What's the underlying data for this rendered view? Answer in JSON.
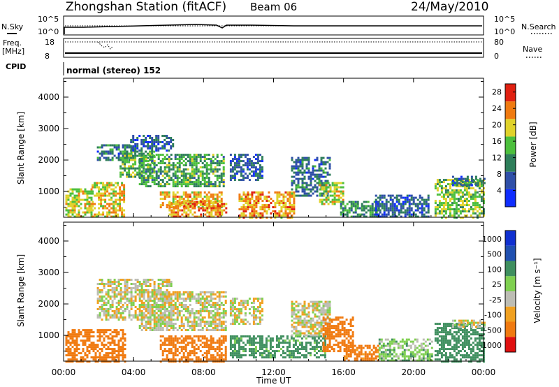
{
  "header": {
    "station_title": "Zhongshan Station (fitACF)",
    "beam": "Beam 06",
    "date": "24/May/2010"
  },
  "strip_panels": {
    "nsky_label": "N.Sky",
    "nsearch_label": "N.Search",
    "noise_ticks_left": [
      "10^5",
      "10^0"
    ],
    "noise_ticks_right": [
      "10^5",
      "10^0"
    ],
    "freq_label": "Freq.",
    "freq_unit": "[MHz]",
    "freq_ticks": [
      "18",
      "8"
    ],
    "nave_label": "Nave",
    "nave_ticks": [
      "80",
      "0"
    ],
    "cpid_label": "CPID",
    "cpid_text": "normal (stereo) 152"
  },
  "colors": {
    "power_scale": [
      "#0f2dff",
      "#2f4fa8",
      "#2e7e5a",
      "#4cbf3c",
      "#e0d22a",
      "#f07a10",
      "#e02010"
    ],
    "velocity_scale": [
      "#e01010",
      "#f07a10",
      "#f0a020",
      "#bdbdb4",
      "#7fd050",
      "#3f8f5f",
      "#2050b0",
      "#1030d0"
    ]
  },
  "chart_data": [
    {
      "type": "heatmap",
      "name": "power",
      "ylabel": "Slant Range [km]",
      "xlabel": "",
      "x_ticks": [
        "00:00",
        "04:00",
        "08:00",
        "12:00",
        "16:00",
        "20:00",
        "00:00"
      ],
      "y_ticks": [
        "1000",
        "2000",
        "3000",
        "4000"
      ],
      "xlim_hours": [
        0,
        24
      ],
      "ylim_km": [
        180,
        4600
      ],
      "colorbar_label": "Power [dB]",
      "colorbar_ticks": [
        "4",
        "8",
        "12",
        "16",
        "20",
        "24",
        "28"
      ],
      "clim": [
        0,
        30
      ],
      "regions": [
        {
          "t0": 0.1,
          "t1": 1.6,
          "r0": 200,
          "r1": 1100,
          "level": 18
        },
        {
          "t0": 1.6,
          "t1": 3.5,
          "r0": 200,
          "r1": 1300,
          "level": 20
        },
        {
          "t0": 1.9,
          "t1": 4.0,
          "r0": 2000,
          "r1": 2500,
          "level": 9
        },
        {
          "t0": 3.2,
          "t1": 5.2,
          "r0": 1500,
          "r1": 2300,
          "level": 14
        },
        {
          "t0": 3.8,
          "t1": 6.2,
          "r0": 2300,
          "r1": 2800,
          "level": 8
        },
        {
          "t0": 4.3,
          "t1": 9.2,
          "r0": 1200,
          "r1": 2200,
          "level": 13
        },
        {
          "t0": 5.5,
          "t1": 9.0,
          "r0": 500,
          "r1": 1000,
          "level": 21
        },
        {
          "t0": 6.0,
          "t1": 9.3,
          "r0": 200,
          "r1": 700,
          "level": 23
        },
        {
          "t0": 9.5,
          "t1": 11.3,
          "r0": 1400,
          "r1": 2200,
          "level": 8
        },
        {
          "t0": 10.0,
          "t1": 13.2,
          "r0": 200,
          "r1": 1000,
          "level": 22
        },
        {
          "t0": 13.0,
          "t1": 15.2,
          "r0": 900,
          "r1": 2100,
          "level": 9
        },
        {
          "t0": 14.6,
          "t1": 16.0,
          "r0": 600,
          "r1": 1300,
          "level": 18
        },
        {
          "t0": 15.8,
          "t1": 18.0,
          "r0": 200,
          "r1": 700,
          "level": 12
        },
        {
          "t0": 17.8,
          "t1": 20.8,
          "r0": 200,
          "r1": 900,
          "level": 7
        },
        {
          "t0": 21.2,
          "t1": 24.0,
          "r0": 200,
          "r1": 1400,
          "level": 16
        },
        {
          "t0": 22.2,
          "t1": 24.0,
          "r0": 1200,
          "r1": 1500,
          "level": 8
        }
      ]
    },
    {
      "type": "heatmap",
      "name": "velocity",
      "ylabel": "Slant Range [km]",
      "xlabel": "Time UT",
      "x_ticks": [
        "00:00",
        "04:00",
        "08:00",
        "12:00",
        "16:00",
        "20:00",
        "00:00"
      ],
      "y_ticks": [
        "1000",
        "2000",
        "3000",
        "4000"
      ],
      "xlim_hours": [
        0,
        24
      ],
      "ylim_km": [
        180,
        4600
      ],
      "colorbar_label": "Velocity [m s⁻¹]",
      "colorbar_ticks": [
        "1000",
        "500",
        "100",
        "25",
        "-25",
        "-100",
        "-500",
        "-1000"
      ],
      "regions": [
        {
          "t0": 0.1,
          "t1": 3.5,
          "r0": 200,
          "r1": 1200,
          "velocity": -300
        },
        {
          "t0": 1.9,
          "t1": 6.2,
          "r0": 1500,
          "r1": 2800,
          "velocity": 0
        },
        {
          "t0": 4.3,
          "t1": 9.3,
          "r0": 1200,
          "r1": 2400,
          "velocity": 0
        },
        {
          "t0": 5.5,
          "t1": 9.3,
          "r0": 200,
          "r1": 1000,
          "velocity": -200
        },
        {
          "t0": 9.5,
          "t1": 11.3,
          "r0": 1400,
          "r1": 2200,
          "velocity": 0
        },
        {
          "t0": 9.5,
          "t1": 15.0,
          "r0": 300,
          "r1": 1000,
          "velocity": 150
        },
        {
          "t0": 13.0,
          "t1": 15.2,
          "r0": 1000,
          "r1": 2100,
          "velocity": 0
        },
        {
          "t0": 14.8,
          "t1": 16.5,
          "r0": 500,
          "r1": 1600,
          "velocity": -300
        },
        {
          "t0": 16.0,
          "t1": 18.0,
          "r0": 200,
          "r1": 700,
          "velocity": -150
        },
        {
          "t0": 18.0,
          "t1": 21.0,
          "r0": 200,
          "r1": 900,
          "velocity": 60
        },
        {
          "t0": 21.2,
          "t1": 24.0,
          "r0": 200,
          "r1": 1400,
          "velocity": 300
        },
        {
          "t0": 22.2,
          "t1": 24.0,
          "r0": 1300,
          "r1": 1500,
          "velocity": 0
        }
      ]
    }
  ]
}
